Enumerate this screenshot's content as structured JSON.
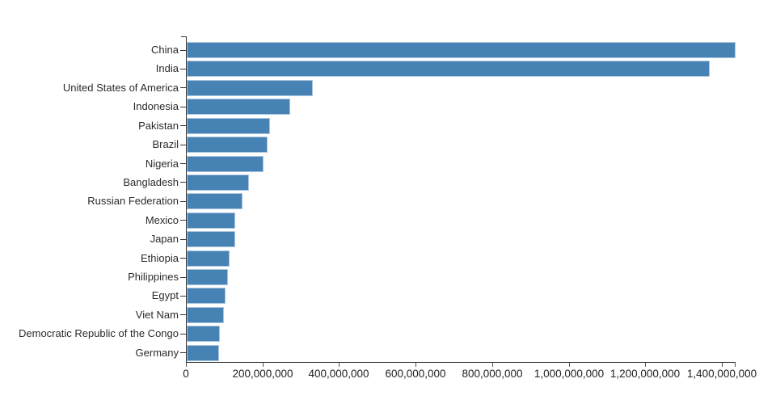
{
  "chart_data": {
    "type": "bar",
    "orientation": "horizontal",
    "title": "",
    "xlabel": "",
    "ylabel": "",
    "legend": null,
    "grid": false,
    "categories": [
      "China",
      "India",
      "United States of America",
      "Indonesia",
      "Pakistan",
      "Brazil",
      "Nigeria",
      "Bangladesh",
      "Russian Federation",
      "Mexico",
      "Japan",
      "Ethiopia",
      "Philippines",
      "Egypt",
      "Viet Nam",
      "Democratic Republic of the Congo",
      "Germany"
    ],
    "values": [
      1433783686,
      1366417754,
      329064917,
      270625568,
      216565318,
      211049527,
      200963599,
      163046161,
      145872256,
      127575529,
      126860301,
      112078730,
      108116615,
      100388073,
      96462106,
      86790567,
      83517045
    ],
    "xlim": [
      0,
      1433783686
    ],
    "x_ticks": [
      {
        "value": 0,
        "label": "0"
      },
      {
        "value": 200000000,
        "label": "200,000,000"
      },
      {
        "value": 400000000,
        "label": "400,000,000"
      },
      {
        "value": 600000000,
        "label": "600,000,000"
      },
      {
        "value": 800000000,
        "label": "800,000,000"
      },
      {
        "value": 1000000000,
        "label": "1,000,000,000"
      },
      {
        "value": 1200000000,
        "label": "1,200,000,000"
      },
      {
        "value": 1400000000,
        "label": "1,400,000,000"
      }
    ],
    "colors": {
      "bar_fill": "#4682b4",
      "bar_stroke": "#aac7e0",
      "axis": "#333333",
      "tick": "#555555",
      "label_text": "#2b2b2b",
      "tick_text": "#222222",
      "background": "#ffffff"
    }
  }
}
